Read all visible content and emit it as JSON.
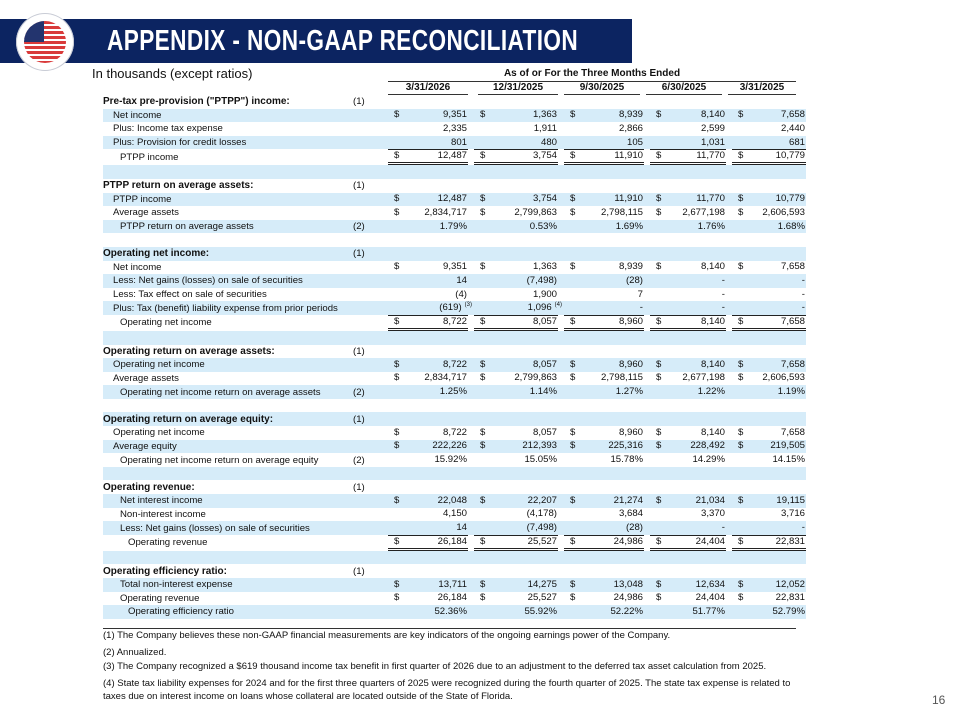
{
  "header": {
    "title": "APPENDIX - NON-GAAP RECONCILIATION",
    "units_note": "In thousands (except ratios)",
    "period_caption": "As of or For the Three Months Ended",
    "brand_color": "#0c2461"
  },
  "periods": [
    "3/31/2026",
    "12/31/2025",
    "9/30/2025",
    "6/30/2025",
    "3/31/2025"
  ],
  "rows": [
    {
      "type": "section",
      "label": "Pre-tax pre-provision (\"PTPP\") income:",
      "note": "(1)"
    },
    {
      "type": "line",
      "indent": 1,
      "label": "Net income",
      "d": "$",
      "values": [
        "9,351",
        "1,363",
        "8,939",
        "8,140",
        "7,658"
      ]
    },
    {
      "type": "line",
      "indent": 1,
      "label": "Plus: Income tax expense",
      "values": [
        "2,335",
        "1,911",
        "2,866",
        "2,599",
        "2,440"
      ]
    },
    {
      "type": "line",
      "indent": 1,
      "label": "Plus: Provision for credit losses",
      "values": [
        "801",
        "480",
        "105",
        "1,031",
        "681"
      ]
    },
    {
      "type": "total",
      "indent": 2,
      "label": "PTPP income",
      "d": "$",
      "values": [
        "12,487",
        "3,754",
        "11,910",
        "11,770",
        "10,779"
      ]
    },
    {
      "type": "blank"
    },
    {
      "type": "section",
      "label": "PTPP return on average assets:",
      "note": "(1)"
    },
    {
      "type": "line",
      "indent": 1,
      "label": "PTPP income",
      "d": "$",
      "values": [
        "12,487",
        "3,754",
        "11,910",
        "11,770",
        "10,779"
      ]
    },
    {
      "type": "line",
      "indent": 1,
      "label": "Average assets",
      "d": "$",
      "values": [
        "2,834,717",
        "2,799,863",
        "2,798,115",
        "2,677,198",
        "2,606,593"
      ]
    },
    {
      "type": "line",
      "indent": 2,
      "label": "PTPP return on average assets",
      "note": "(2)",
      "values": [
        "1.79%",
        "0.53%",
        "1.69%",
        "1.76%",
        "1.68%"
      ]
    },
    {
      "type": "blank"
    },
    {
      "type": "section",
      "label": "Operating net income:",
      "note": "(1)"
    },
    {
      "type": "line",
      "indent": 1,
      "label": "Net income",
      "d": "$",
      "values": [
        "9,351",
        "1,363",
        "8,939",
        "8,140",
        "7,658"
      ]
    },
    {
      "type": "line",
      "indent": 1,
      "label": "Less: Net gains (losses) on sale of securities",
      "values": [
        "14",
        "(7,498)",
        "(28)",
        "-",
        "-"
      ]
    },
    {
      "type": "line",
      "indent": 1,
      "label": "Less: Tax effect on sale of securities",
      "values": [
        "(4)",
        "1,900",
        "7",
        "-",
        "-"
      ]
    },
    {
      "type": "line",
      "indent": 1,
      "label": "Plus: Tax (benefit) liability expense from prior periods",
      "values": [
        "(619)",
        "1,096",
        "-",
        "-",
        "-"
      ],
      "sups": [
        "(3)",
        "(4)",
        "",
        "",
        ""
      ]
    },
    {
      "type": "total",
      "indent": 2,
      "label": "Operating net income",
      "d": "$",
      "values": [
        "8,722",
        "8,057",
        "8,960",
        "8,140",
        "7,658"
      ]
    },
    {
      "type": "blank"
    },
    {
      "type": "section",
      "label": "Operating return on average assets:",
      "note": "(1)"
    },
    {
      "type": "line",
      "indent": 1,
      "label": "Operating net income",
      "d": "$",
      "values": [
        "8,722",
        "8,057",
        "8,960",
        "8,140",
        "7,658"
      ]
    },
    {
      "type": "line",
      "indent": 1,
      "label": "Average assets",
      "d": "$",
      "values": [
        "2,834,717",
        "2,799,863",
        "2,798,115",
        "2,677,198",
        "2,606,593"
      ]
    },
    {
      "type": "line",
      "indent": 2,
      "label": "Operating net income return on average assets",
      "note": "(2)",
      "values": [
        "1.25%",
        "1.14%",
        "1.27%",
        "1.22%",
        "1.19%"
      ]
    },
    {
      "type": "blank"
    },
    {
      "type": "section",
      "label": "Operating return on average equity:",
      "note": "(1)"
    },
    {
      "type": "line",
      "indent": 1,
      "label": "Operating net income",
      "d": "$",
      "values": [
        "8,722",
        "8,057",
        "8,960",
        "8,140",
        "7,658"
      ]
    },
    {
      "type": "line",
      "indent": 1,
      "label": "Average equity",
      "d": "$",
      "values": [
        "222,226",
        "212,393",
        "225,316",
        "228,492",
        "219,505"
      ]
    },
    {
      "type": "line",
      "indent": 2,
      "label": "Operating net income return on average equity",
      "note": "(2)",
      "values": [
        "15.92%",
        "15.05%",
        "15.78%",
        "14.29%",
        "14.15%"
      ]
    },
    {
      "type": "blank"
    },
    {
      "type": "section",
      "label": "Operating revenue:",
      "note": "(1)"
    },
    {
      "type": "line",
      "indent": 2,
      "label": "Net interest income",
      "d": "$",
      "values": [
        "22,048",
        "22,207",
        "21,274",
        "21,034",
        "19,115"
      ]
    },
    {
      "type": "line",
      "indent": 2,
      "label": "Non-interest income",
      "values": [
        "4,150",
        "(4,178)",
        "3,684",
        "3,370",
        "3,716"
      ]
    },
    {
      "type": "line",
      "indent": 2,
      "label": "Less: Net gains (losses) on sale of securities",
      "values": [
        "14",
        "(7,498)",
        "(28)",
        "-",
        "-"
      ]
    },
    {
      "type": "total",
      "indent": 3,
      "label": "Operating revenue",
      "d": "$",
      "values": [
        "26,184",
        "25,527",
        "24,986",
        "24,404",
        "22,831"
      ]
    },
    {
      "type": "blank"
    },
    {
      "type": "section",
      "label": "Operating efficiency ratio:",
      "note": "(1)"
    },
    {
      "type": "line",
      "indent": 2,
      "label": "Total non-interest expense",
      "d": "$",
      "values": [
        "13,711",
        "14,275",
        "13,048",
        "12,634",
        "12,052"
      ]
    },
    {
      "type": "line",
      "indent": 2,
      "label": "Operating revenue",
      "d": "$",
      "values": [
        "26,184",
        "25,527",
        "24,986",
        "24,404",
        "22,831"
      ]
    },
    {
      "type": "line",
      "indent": 3,
      "label": "Operating efficiency ratio",
      "values": [
        "52.36%",
        "55.92%",
        "52.22%",
        "51.77%",
        "52.79%"
      ]
    }
  ],
  "footnotes": [
    "(1) The Company believes these non-GAAP financial measurements are key indicators of the ongoing earnings power of the Company.",
    "(2)  Annualized.",
    "(3)  The Company recognized a $619 thousand income tax benefit in first quarter of 2026 due to an adjustment to the deferred tax asset calculation from 2025.",
    "(4) State tax liability expenses for 2024 and for the first three quarters of 2025 were recognized during the fourth quarter of 2025. The state tax expense is related to taxes due on interest income on loans whose collateral are located outside of the State of Florida."
  ],
  "page_number": "16"
}
